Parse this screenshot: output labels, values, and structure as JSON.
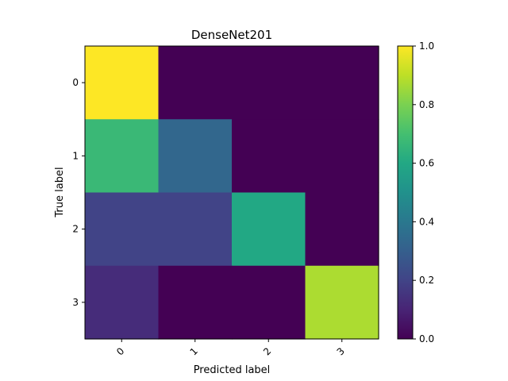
{
  "chart_data": {
    "type": "heatmap",
    "title": "DenseNet201",
    "xlabel": "Predicted label",
    "ylabel": "True label",
    "x_categories": [
      "0",
      "1",
      "2",
      "3"
    ],
    "y_categories": [
      "0",
      "1",
      "2",
      "3"
    ],
    "values": [
      [
        1.0,
        0.0,
        0.0,
        0.0
      ],
      [
        0.67,
        0.33,
        0.0,
        0.0
      ],
      [
        0.2,
        0.2,
        0.6,
        0.0
      ],
      [
        0.125,
        0.0,
        0.0,
        0.875
      ]
    ],
    "x_tick_rotation": 45,
    "colorbar": {
      "colormap": "viridis",
      "range": [
        0.0,
        1.0
      ],
      "ticks": [
        "0.0",
        "0.2",
        "0.4",
        "0.6",
        "0.8",
        "1.0"
      ]
    }
  }
}
